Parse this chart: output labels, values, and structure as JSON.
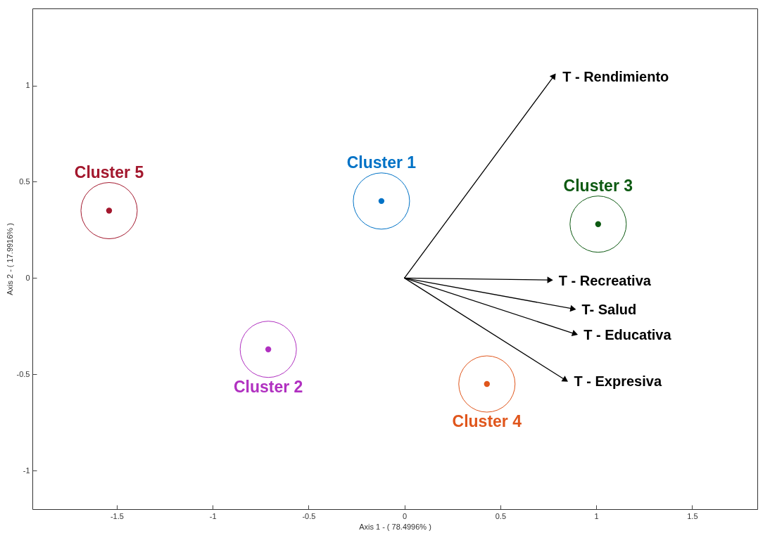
{
  "chart_data": {
    "type": "scatter",
    "xlabel": "Axis 1 - ( 78.4996% )",
    "ylabel": "Axis 2 - ( 17.9916% )",
    "xlim": [
      -1.94,
      1.84
    ],
    "ylim": [
      -1.2,
      1.4
    ],
    "xticks": [
      -1.5,
      -1,
      -0.5,
      0,
      0.5,
      1,
      1.5
    ],
    "yticks": [
      -1,
      -0.5,
      0,
      0.5,
      1
    ],
    "grid": false,
    "series": [
      {
        "name": "Cluster 1",
        "marker": "circle",
        "color": "#0072c6",
        "x": [
          -0.12
        ],
        "values": [
          0.4
        ]
      },
      {
        "name": "Cluster 2",
        "marker": "circle",
        "color": "#b030c0",
        "x": [
          -0.71
        ],
        "values": [
          -0.37
        ]
      },
      {
        "name": "Cluster 3",
        "marker": "circle",
        "color": "#0d5a12",
        "x": [
          1.01
        ],
        "values": [
          0.28
        ]
      },
      {
        "name": "Cluster 4",
        "marker": "circle",
        "color": "#e0561c",
        "x": [
          0.43
        ],
        "values": [
          -0.55
        ]
      },
      {
        "name": "Cluster 5",
        "marker": "circle",
        "color": "#a3172d",
        "x": [
          -1.54
        ],
        "values": [
          0.35
        ]
      },
      {
        "name": "T - Rendimiento",
        "type": "line",
        "color": "#000000",
        "x": [
          0,
          0.78
        ],
        "values": [
          0,
          1.05
        ]
      },
      {
        "name": "T - Recreativa",
        "type": "line",
        "color": "#000000",
        "x": [
          0,
          0.76
        ],
        "values": [
          0,
          -0.01
        ]
      },
      {
        "name": "T- Salud",
        "type": "line",
        "color": "#000000",
        "x": [
          0,
          0.88
        ],
        "values": [
          0,
          -0.16
        ]
      },
      {
        "name": "T - Educativa",
        "type": "line",
        "color": "#000000",
        "x": [
          0,
          0.89
        ],
        "values": [
          0,
          -0.29
        ]
      },
      {
        "name": "T - Expresiva",
        "type": "line",
        "color": "#000000",
        "x": [
          0,
          0.84
        ],
        "values": [
          0,
          -0.53
        ]
      }
    ]
  }
}
